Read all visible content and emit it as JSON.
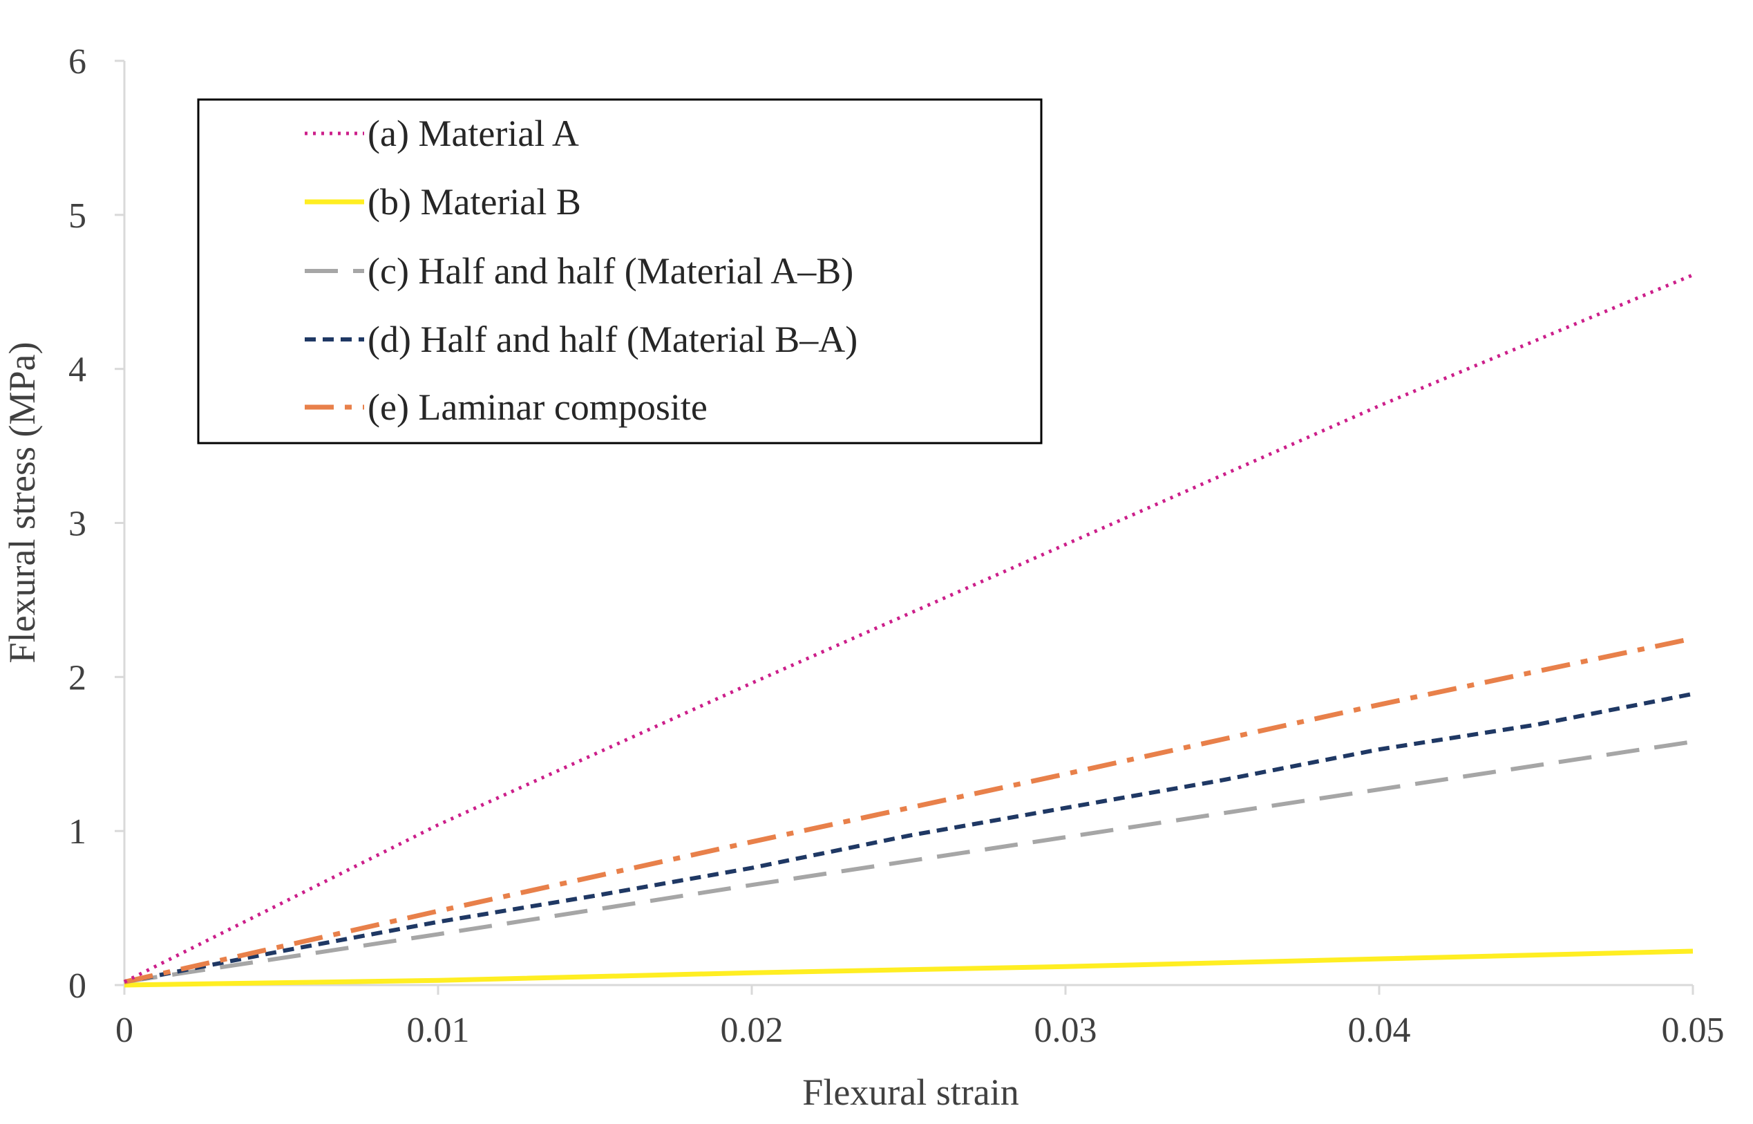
{
  "chart_data": {
    "type": "line",
    "title": "",
    "xlabel": "Flexural strain",
    "ylabel": "Flexural stress (MPa)",
    "xlim": [
      0,
      0.05
    ],
    "ylim": [
      0,
      6
    ],
    "xticks": [
      0,
      0.01,
      0.02,
      0.03,
      0.04,
      0.05
    ],
    "xtick_labels": [
      "0",
      "0.01",
      "0.02",
      "0.03",
      "0.04",
      "0.05"
    ],
    "yticks": [
      0,
      1,
      2,
      3,
      4,
      5,
      6
    ],
    "ytick_labels": [
      "0",
      "1",
      "2",
      "3",
      "4",
      "5",
      "6"
    ],
    "grid": false,
    "legend_position": "top-left",
    "series": [
      {
        "name": "(a) Material A",
        "color": "#cc1f8a",
        "style": "dotted",
        "x": [
          0,
          0.01,
          0.02,
          0.03,
          0.04,
          0.05
        ],
        "y": [
          0.02,
          1.04,
          1.96,
          2.86,
          3.76,
          4.61
        ]
      },
      {
        "name": "(b) Material B",
        "color": "#ffee22",
        "style": "solid",
        "x": [
          0,
          0.01,
          0.02,
          0.03,
          0.04,
          0.05
        ],
        "y": [
          0.0,
          0.03,
          0.08,
          0.12,
          0.17,
          0.22
        ]
      },
      {
        "name": "(c) Half and half (Material A–B)",
        "color": "#a6a6a6",
        "style": "dashed",
        "x": [
          0,
          0.01,
          0.02,
          0.03,
          0.04,
          0.05
        ],
        "y": [
          0.02,
          0.33,
          0.65,
          0.96,
          1.27,
          1.58
        ]
      },
      {
        "name": "(d) Half and half (Material B–A)",
        "color": "#1f3864",
        "style": "short-dashed",
        "x": [
          0,
          0.005,
          0.01,
          0.015,
          0.02,
          0.025,
          0.03,
          0.035,
          0.037,
          0.04,
          0.045,
          0.05
        ],
        "y": [
          0.02,
          0.22,
          0.41,
          0.58,
          0.76,
          0.97,
          1.15,
          1.33,
          1.41,
          1.53,
          1.69,
          1.89
        ]
      },
      {
        "name": "(e) Laminar composite",
        "color": "#e8804a",
        "style": "dash-dot",
        "x": [
          0,
          0.01,
          0.02,
          0.03,
          0.04,
          0.05
        ],
        "y": [
          0.02,
          0.48,
          0.93,
          1.37,
          1.82,
          2.25
        ]
      }
    ]
  }
}
